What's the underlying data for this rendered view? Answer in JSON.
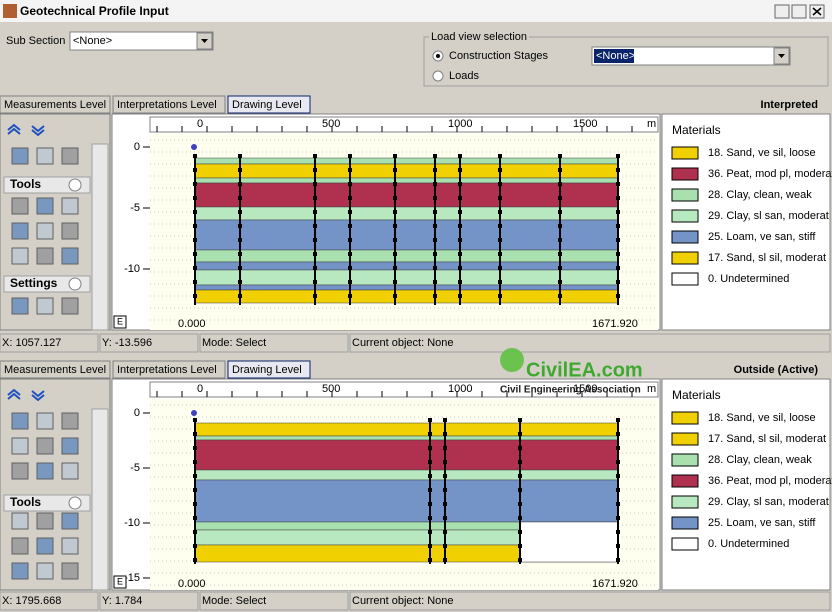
{
  "window": {
    "title": "Geotechnical Profile Input"
  },
  "sub_section": {
    "label": "Sub Section",
    "value": "<None>"
  },
  "load_view": {
    "title": "Load view selection",
    "options": [
      "Construction Stages",
      "Loads"
    ],
    "value": "<None>"
  },
  "panes": [
    {
      "tabs": [
        "Measurements Level",
        "Interpretations Level",
        "Drawing Level"
      ],
      "label": "Interpreted",
      "toolbar": [
        "Tools",
        "Settings"
      ],
      "x_ticks": [
        "0",
        "500",
        "1000",
        "1500"
      ],
      "x_unit": "m",
      "y_ticks": [
        "0",
        "-5",
        "-10"
      ],
      "corner_label": "E",
      "x_start": "0.000",
      "x_end": "1671.920",
      "legend_title": "Materials",
      "materials": [
        "18. Sand, ve sil, loose",
        "36. Peat, mod pl, moderat",
        "28. Clay, clean, weak",
        "29. Clay, sl san, moderat",
        "25. Loam, ve san, stiff",
        "17. Sand, sl sil, moderat",
        "0. Undetermined"
      ],
      "status": {
        "x": "X: 1057.127",
        "y": "Y: -13.596",
        "mode": "Mode: Select",
        "object": "Current object: None"
      }
    },
    {
      "tabs": [
        "Measurements Level",
        "Interpretations Level",
        "Drawing Level"
      ],
      "label": "Outside (Active)",
      "toolbar": [
        "Tools"
      ],
      "x_ticks": [
        "0",
        "500",
        "1000",
        "1500"
      ],
      "x_unit": "m",
      "y_ticks": [
        "0",
        "-5",
        "-10",
        "-15"
      ],
      "corner_label": "E",
      "x_start": "0.000",
      "x_end": "1671.920",
      "legend_title": "Materials",
      "materials": [
        "18. Sand, ve sil, loose",
        "17. Sand, sl sil, moderat",
        "28. Clay, clean, weak",
        "36. Peat, mod pl, moderat",
        "29. Clay, sl san, moderat",
        "25. Loam, ve san, stiff",
        "0. Undetermined"
      ],
      "status": {
        "x": "X: 1795.668",
        "y": "Y: 1.784",
        "mode": "Mode: Select",
        "object": "Current object: None"
      }
    }
  ],
  "watermark": {
    "site": "CivilEA.com",
    "name": "Civil Engineering Association"
  }
}
